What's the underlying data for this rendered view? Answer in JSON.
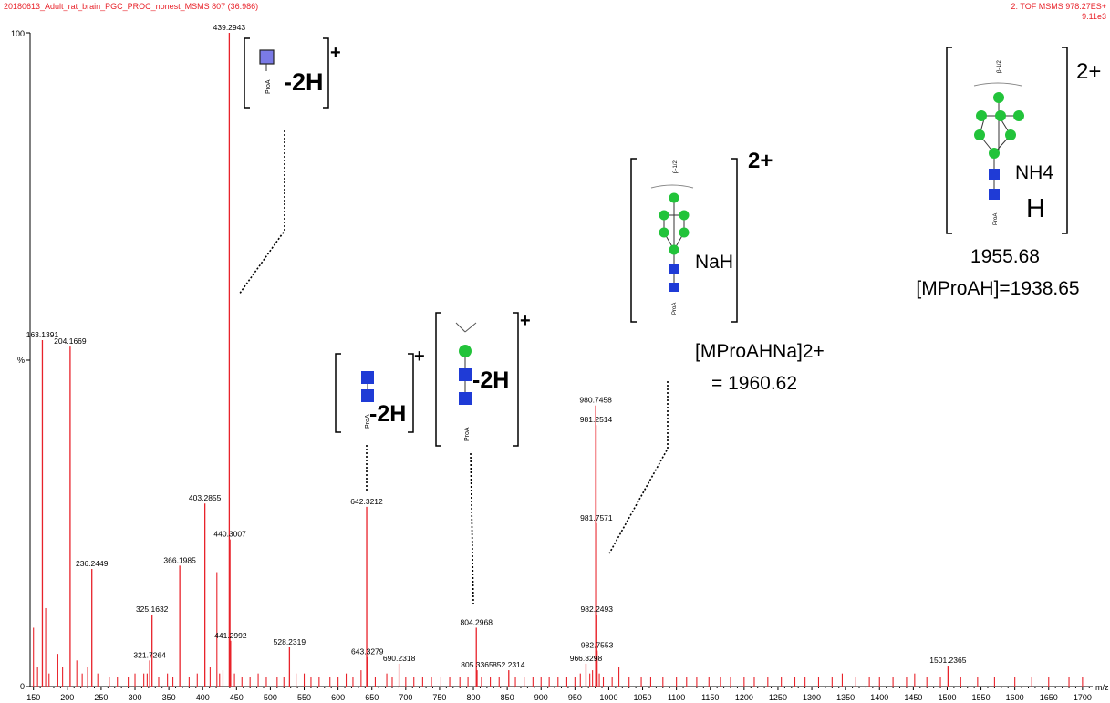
{
  "header": {
    "run_title": "20180613_Adult_rat_brain_PGC_PROC_nonest_MSMS 807 (36.986)",
    "scan_info": "2: TOF MSMS 978.27ES+",
    "intensity": "9.11e3",
    "y_top_label": "100",
    "y_mid_label": "%",
    "y_zero_label": "0",
    "x_unit_label": "m/z"
  },
  "colors": {
    "spectrum": "#e8222a",
    "glcnac": "#1f3bd6",
    "mannose": "#22c33a",
    "fucose_box": "#7a7ae6"
  },
  "chart_data": {
    "type": "bar",
    "xlim": [
      145,
      1715
    ],
    "ylim": [
      0,
      100
    ],
    "xticks": [
      150,
      200,
      250,
      300,
      350,
      400,
      450,
      500,
      550,
      600,
      650,
      700,
      750,
      800,
      850,
      900,
      950,
      1000,
      1050,
      1100,
      1150,
      1200,
      1250,
      1300,
      1350,
      1400,
      1450,
      1500,
      1550,
      1600,
      1650,
      1700
    ],
    "labeled_peaks": [
      {
        "mz": 163.1391,
        "intensity": 53,
        "label": "163.1391"
      },
      {
        "mz": 204.1669,
        "intensity": 52,
        "label": "204.1669"
      },
      {
        "mz": 236.2449,
        "intensity": 18,
        "label": "236.2449"
      },
      {
        "mz": 321.7264,
        "intensity": 4,
        "label": "321.7264"
      },
      {
        "mz": 325.1632,
        "intensity": 11,
        "label": "325.1632"
      },
      {
        "mz": 366.1985,
        "intensity": 18.5,
        "label": "366.1985"
      },
      {
        "mz": 403.2855,
        "intensity": 28,
        "label": "403.2855"
      },
      {
        "mz": 439.2943,
        "intensity": 100,
        "label": "439.2943"
      },
      {
        "mz": 440.3007,
        "intensity": 22.5,
        "label": "440.3007"
      },
      {
        "mz": 441.2992,
        "intensity": 7,
        "label": "441.2992"
      },
      {
        "mz": 528.2319,
        "intensity": 6,
        "label": "528.2319"
      },
      {
        "mz": 642.3212,
        "intensity": 27.5,
        "label": "642.3212"
      },
      {
        "mz": 643.3279,
        "intensity": 4.5,
        "label": "643.3279"
      },
      {
        "mz": 690.2318,
        "intensity": 3.5,
        "label": "690.2318"
      },
      {
        "mz": 804.2968,
        "intensity": 9,
        "label": "804.2968"
      },
      {
        "mz": 805.3365,
        "intensity": 2.5,
        "label": "805.3365"
      },
      {
        "mz": 852.2314,
        "intensity": 2.5,
        "label": "852.2314"
      },
      {
        "mz": 966.3298,
        "intensity": 3.5,
        "label": "966.3298"
      },
      {
        "mz": 980.7458,
        "intensity": 43,
        "label": "980.7458"
      },
      {
        "mz": 981.2514,
        "intensity": 40,
        "label": "981.2514"
      },
      {
        "mz": 981.7571,
        "intensity": 25,
        "label": "981.7571"
      },
      {
        "mz": 982.2493,
        "intensity": 11,
        "label": "982.2493"
      },
      {
        "mz": 982.7553,
        "intensity": 5.5,
        "label": "982.7553"
      },
      {
        "mz": 1501.2365,
        "intensity": 3.2,
        "label": "1501.2365"
      }
    ],
    "unlabeled_peaks": [
      [
        150,
        9
      ],
      [
        156,
        3
      ],
      [
        168,
        12
      ],
      [
        173,
        2
      ],
      [
        186,
        5
      ],
      [
        193,
        3
      ],
      [
        214,
        4
      ],
      [
        222,
        2
      ],
      [
        230,
        3
      ],
      [
        245,
        2
      ],
      [
        262,
        1.5
      ],
      [
        274,
        1.5
      ],
      [
        290,
        1.5
      ],
      [
        300,
        2
      ],
      [
        313,
        2
      ],
      [
        318,
        2
      ],
      [
        335,
        1.5
      ],
      [
        348,
        2
      ],
      [
        356,
        1.5
      ],
      [
        380,
        1.5
      ],
      [
        392,
        2
      ],
      [
        411,
        3
      ],
      [
        421,
        17.5
      ],
      [
        425,
        2
      ],
      [
        430,
        2.5
      ],
      [
        447,
        2
      ],
      [
        458,
        1.5
      ],
      [
        470,
        1.5
      ],
      [
        482,
        2
      ],
      [
        494,
        1.5
      ],
      [
        510,
        1.5
      ],
      [
        520,
        1.5
      ],
      [
        538,
        2
      ],
      [
        550,
        2
      ],
      [
        560,
        1.5
      ],
      [
        572,
        1.5
      ],
      [
        588,
        1.5
      ],
      [
        600,
        1.5
      ],
      [
        612,
        2
      ],
      [
        622,
        1.5
      ],
      [
        634,
        2.5
      ],
      [
        655,
        1.5
      ],
      [
        672,
        2
      ],
      [
        680,
        1.5
      ],
      [
        700,
        1.5
      ],
      [
        712,
        1.5
      ],
      [
        725,
        1.5
      ],
      [
        738,
        1.5
      ],
      [
        752,
        1.5
      ],
      [
        765,
        1.5
      ],
      [
        780,
        1.5
      ],
      [
        792,
        1.5
      ],
      [
        812,
        1.5
      ],
      [
        825,
        1.5
      ],
      [
        838,
        1.5
      ],
      [
        862,
        1.5
      ],
      [
        875,
        1.5
      ],
      [
        888,
        1.5
      ],
      [
        900,
        1.5
      ],
      [
        912,
        1.5
      ],
      [
        925,
        1.5
      ],
      [
        938,
        1.5
      ],
      [
        950,
        1.5
      ],
      [
        958,
        2
      ],
      [
        972,
        2
      ],
      [
        976,
        2.5
      ],
      [
        986,
        2
      ],
      [
        992,
        1.5
      ],
      [
        1005,
        1.5
      ],
      [
        1015,
        3
      ],
      [
        1030,
        1.5
      ],
      [
        1048,
        1.5
      ],
      [
        1062,
        1.5
      ],
      [
        1080,
        1.5
      ],
      [
        1100,
        1.5
      ],
      [
        1115,
        1.5
      ],
      [
        1130,
        1.5
      ],
      [
        1148,
        1.5
      ],
      [
        1165,
        1.5
      ],
      [
        1180,
        1.5
      ],
      [
        1200,
        1.5
      ],
      [
        1215,
        1.5
      ],
      [
        1235,
        1.5
      ],
      [
        1255,
        1.5
      ],
      [
        1275,
        1.5
      ],
      [
        1290,
        1.5
      ],
      [
        1310,
        1.5
      ],
      [
        1330,
        1.5
      ],
      [
        1345,
        2
      ],
      [
        1365,
        1.5
      ],
      [
        1385,
        1.5
      ],
      [
        1400,
        1.5
      ],
      [
        1420,
        1.5
      ],
      [
        1440,
        1.5
      ],
      [
        1452,
        2
      ],
      [
        1470,
        1.5
      ],
      [
        1490,
        1.5
      ],
      [
        1520,
        1.5
      ],
      [
        1545,
        1.5
      ],
      [
        1570,
        1.5
      ],
      [
        1600,
        1.5
      ],
      [
        1625,
        1.5
      ],
      [
        1650,
        1.5
      ],
      [
        1680,
        1.5
      ],
      [
        1700,
        1.5
      ]
    ]
  },
  "annotations": {
    "ion1": {
      "mod": "-2H",
      "charge": "+",
      "linker": "ProA"
    },
    "ion2": {
      "mod": "-2H",
      "charge": "+",
      "linker": "ProA"
    },
    "ion3": {
      "mod": "-2H",
      "charge": "+",
      "linker": "ProA"
    },
    "ion4": {
      "adduct": "NaH",
      "charge": "2+",
      "linker": "ProA",
      "link_label": "β-1/2",
      "formula": "[MProAHNa]2+",
      "value": "= 1960.62"
    },
    "ion5": {
      "adduct1": "NH4",
      "adduct2": "H",
      "charge": "2+",
      "linker": "ProA",
      "link_label": "β-1/2",
      "mass": "1955.68",
      "formula": "[MProAH]=1938.65"
    }
  }
}
